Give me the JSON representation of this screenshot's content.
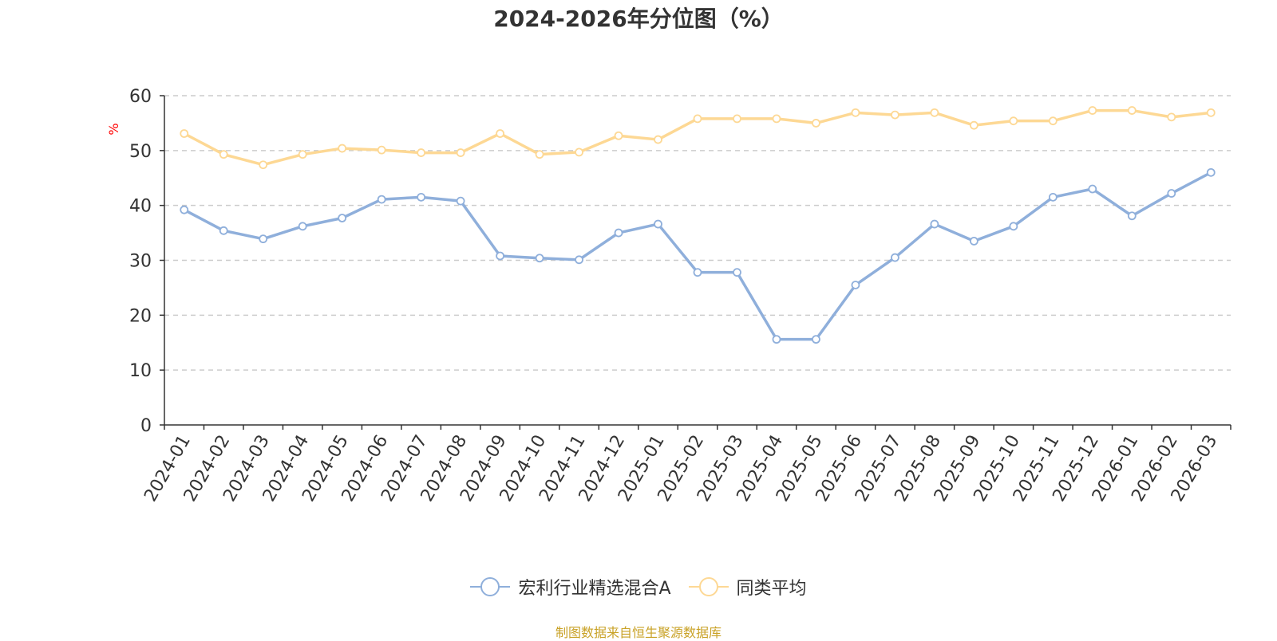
{
  "title": "2024-2026年分位图（%）",
  "source_note": "制图数据来自恒生聚源数据库",
  "colors": {
    "series_fund": "#8FAFDB",
    "series_avg": "#FDD894",
    "unit_label": "#ff0000",
    "source_note": "#C9A227",
    "grid": "#cccccc",
    "axis": "#333333"
  },
  "chart_data": {
    "type": "line",
    "title": "2024-2026年分位图（%）",
    "ylabel": "%",
    "xlabel": "",
    "ylim": [
      0,
      60
    ],
    "yticks": [
      0,
      10,
      20,
      30,
      40,
      50,
      60
    ],
    "grid": true,
    "legend_position": "bottom",
    "categories": [
      "2024-01",
      "2024-02",
      "2024-03",
      "2024-04",
      "2024-05",
      "2024-06",
      "2024-07",
      "2024-08",
      "2024-09",
      "2024-10",
      "2024-11",
      "2024-12",
      "2025-01",
      "2025-02",
      "2025-03",
      "2025-04",
      "2025-05",
      "2025-06",
      "2025-07",
      "2025-08",
      "2025-09",
      "2025-10",
      "2025-11",
      "2025-12",
      "2026-01",
      "2026-02",
      "2026-03"
    ],
    "series": [
      {
        "name": "宏利行业精选混合A",
        "color": "#8FAFDB",
        "values": [
          39.2,
          35.4,
          33.9,
          36.2,
          37.7,
          41.1,
          41.5,
          40.8,
          30.8,
          30.4,
          30.1,
          35.0,
          36.6,
          27.8,
          27.8,
          15.6,
          15.6,
          25.5,
          30.5,
          36.6,
          33.5,
          36.2,
          41.5,
          43.0,
          38.1,
          42.2,
          46.0
        ]
      },
      {
        "name": "同类平均",
        "color": "#FDD894",
        "values": [
          53.1,
          49.3,
          47.4,
          49.3,
          50.4,
          50.1,
          49.6,
          49.6,
          53.1,
          49.3,
          49.7,
          52.7,
          52.0,
          55.8,
          55.8,
          55.8,
          55.0,
          56.9,
          56.5,
          56.9,
          54.6,
          55.4,
          55.4,
          57.3,
          57.3,
          56.1,
          56.9
        ]
      }
    ]
  }
}
